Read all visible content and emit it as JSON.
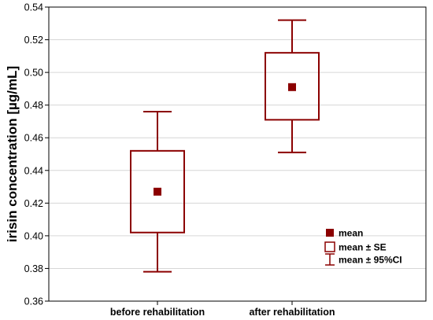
{
  "chart_data": {
    "type": "box",
    "title": "",
    "xlabel": "",
    "ylabel": "irisin concentration [µg/mL]",
    "ylim": [
      0.36,
      0.54
    ],
    "yticks": [
      0.36,
      0.38,
      0.4,
      0.42,
      0.44,
      0.46,
      0.48,
      0.5,
      0.52,
      0.54
    ],
    "ytick_labels": [
      "0.36",
      "0.38",
      "0.40",
      "0.42",
      "0.44",
      "0.46",
      "0.48",
      "0.50",
      "0.52",
      "0.54"
    ],
    "grid": true,
    "color": "#8b0000",
    "categories": [
      "before rehabilitation",
      "after rehabilitation"
    ],
    "groups": [
      {
        "category": "before rehabilitation",
        "mean": 0.427,
        "se_low": 0.402,
        "se_high": 0.452,
        "ci_low": 0.378,
        "ci_high": 0.476
      },
      {
        "category": "after rehabilitation",
        "mean": 0.491,
        "se_low": 0.471,
        "se_high": 0.512,
        "ci_low": 0.451,
        "ci_high": 0.532
      }
    ],
    "legend": {
      "placement": "bottom-right",
      "items": [
        {
          "symbol": "square-filled",
          "label": "mean"
        },
        {
          "symbol": "box-open",
          "label": "mean ± SE"
        },
        {
          "symbol": "whisker",
          "label": "mean ± 95%CI"
        }
      ]
    }
  }
}
